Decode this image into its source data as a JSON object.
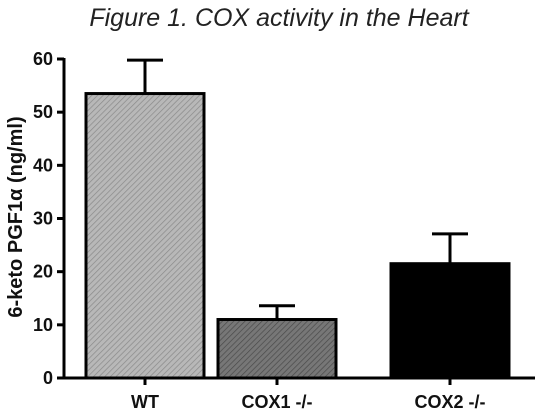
{
  "chart_data": {
    "type": "bar",
    "title": "Figure 1. COX activity in the Heart",
    "ylabel": "6-keto PGF1α (ng/ml)",
    "xlabel": "",
    "categories": [
      "WT",
      "COX1 -/-",
      "COX2 -/-"
    ],
    "values": [
      53.5,
      11,
      21.5
    ],
    "error_upper": [
      6.3,
      2.6,
      5.6
    ],
    "ylim": [
      0,
      60
    ],
    "yticks": [
      "0",
      "10",
      "20",
      "30",
      "40",
      "50",
      "60"
    ],
    "bar_styles": [
      {
        "fill": "#b3b3b3",
        "hatch": "diagonal-light"
      },
      {
        "fill": "#6f6f6f",
        "hatch": "diagonal-dark"
      },
      {
        "fill": "#000000",
        "hatch": "none"
      }
    ],
    "grid": false,
    "legend": "none"
  }
}
